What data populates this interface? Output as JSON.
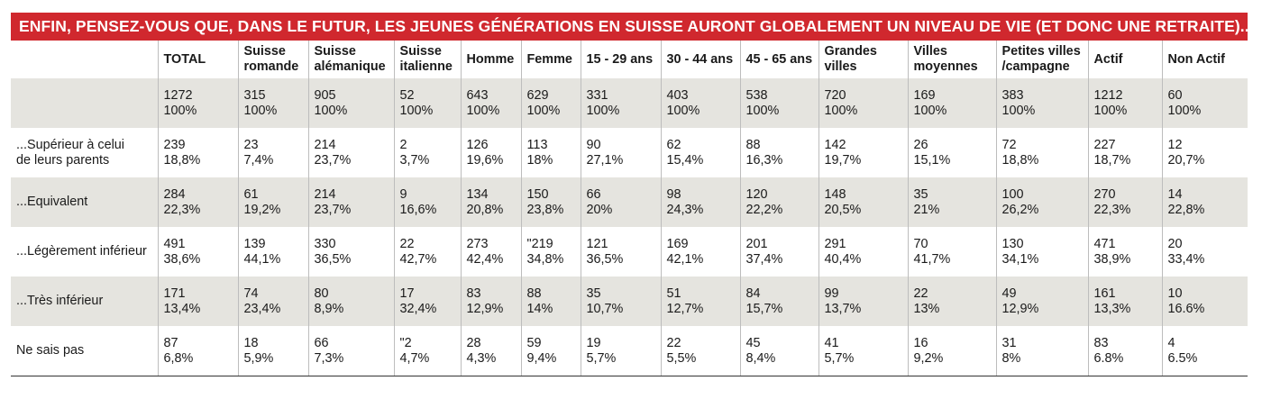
{
  "title": "ENFIN, PENSEZ-VOUS QUE, DANS LE FUTUR, LES JEUNES GÉNÉRATIONS EN SUISSE AURONT GLOBALEMENT UN NIVEAU DE VIE (ET DONC UNE RETRAITE)...",
  "chart_data": {
    "type": "table",
    "columns": [
      "TOTAL",
      "Suisse\nromande",
      "Suisse\nalémanique",
      "Suisse\nitalienne",
      "Homme",
      "Femme",
      "15 - 29 ans",
      "30 - 44 ans",
      "45 - 65 ans",
      "Grandes\nvilles",
      "Villes\nmoyennes",
      "Petites villes\n/campagne",
      "Actif",
      "Non Actif"
    ],
    "rows": [
      {
        "label": "",
        "counts": [
          "1272",
          "315",
          "905",
          "52",
          "643",
          "629",
          "331",
          "403",
          "538",
          "720",
          "169",
          "383",
          "1212",
          "60"
        ],
        "percents": [
          "100%",
          "100%",
          "100%",
          "100%",
          "100%",
          "100%",
          "100%",
          "100%",
          "100%",
          "100%",
          "100%",
          "100%",
          "100%",
          "100%"
        ]
      },
      {
        "label": "...Supérieur à celui\nde leurs parents",
        "counts": [
          "239",
          "23",
          "214",
          "2",
          "126",
          "113",
          "90",
          "62",
          "88",
          "142",
          "26",
          "72",
          "227",
          "12"
        ],
        "percents": [
          "18,8%",
          "7,4%",
          "23,7%",
          "3,7%",
          "19,6%",
          "18%",
          "27,1%",
          "15,4%",
          "16,3%",
          "19,7%",
          "15,1%",
          "18,8%",
          "18,7%",
          "20,7%"
        ]
      },
      {
        "label": "...Equivalent",
        "counts": [
          "284",
          "61",
          "214",
          "9",
          "134",
          "150",
          "66",
          "98",
          "120",
          "148",
          "35",
          "100",
          "270",
          "14"
        ],
        "percents": [
          "22,3%",
          "19,2%",
          "23,7%",
          "16,6%",
          "20,8%",
          "23,8%",
          "20%",
          "24,3%",
          "22,2%",
          "20,5%",
          "21%",
          "26,2%",
          "22,3%",
          "22,8%"
        ]
      },
      {
        "label": "...Légèrement inférieur",
        "counts": [
          "491",
          "139",
          "330",
          "22",
          "273",
          "\"219",
          "121",
          "169",
          "201",
          "291",
          "70",
          "130",
          "471",
          "20"
        ],
        "percents": [
          "38,6%",
          "44,1%",
          "36,5%",
          "42,7%",
          "42,4%",
          "34,8%",
          "36,5%",
          "42,1%",
          "37,4%",
          "40,4%",
          "41,7%",
          "34,1%",
          "38,9%",
          "33,4%"
        ]
      },
      {
        "label": "...Très inférieur",
        "counts": [
          "171",
          "74",
          "80",
          "17",
          "83",
          "88",
          "35",
          "51",
          "84",
          "99",
          "22",
          "49",
          "161",
          "10"
        ],
        "percents": [
          "13,4%",
          "23,4%",
          "8,9%",
          "32,4%",
          "12,9%",
          "14%",
          "10,7%",
          "12,7%",
          "15,7%",
          "13,7%",
          "13%",
          "12,9%",
          "13,3%",
          "16.6%"
        ]
      },
      {
        "label": "Ne sais pas",
        "counts": [
          "87",
          "18",
          "66",
          "\"2",
          "28",
          "59",
          "19",
          "22",
          "45",
          "41",
          "16",
          "31",
          "83",
          "4"
        ],
        "percents": [
          "6,8%",
          "5,9%",
          "7,3%",
          "4,7%",
          "4,3%",
          "9,4%",
          "5,7%",
          "5,5%",
          "8,4%",
          "5,7%",
          "9,2%",
          "8%",
          "6.8%",
          "6.5%"
        ]
      }
    ]
  }
}
